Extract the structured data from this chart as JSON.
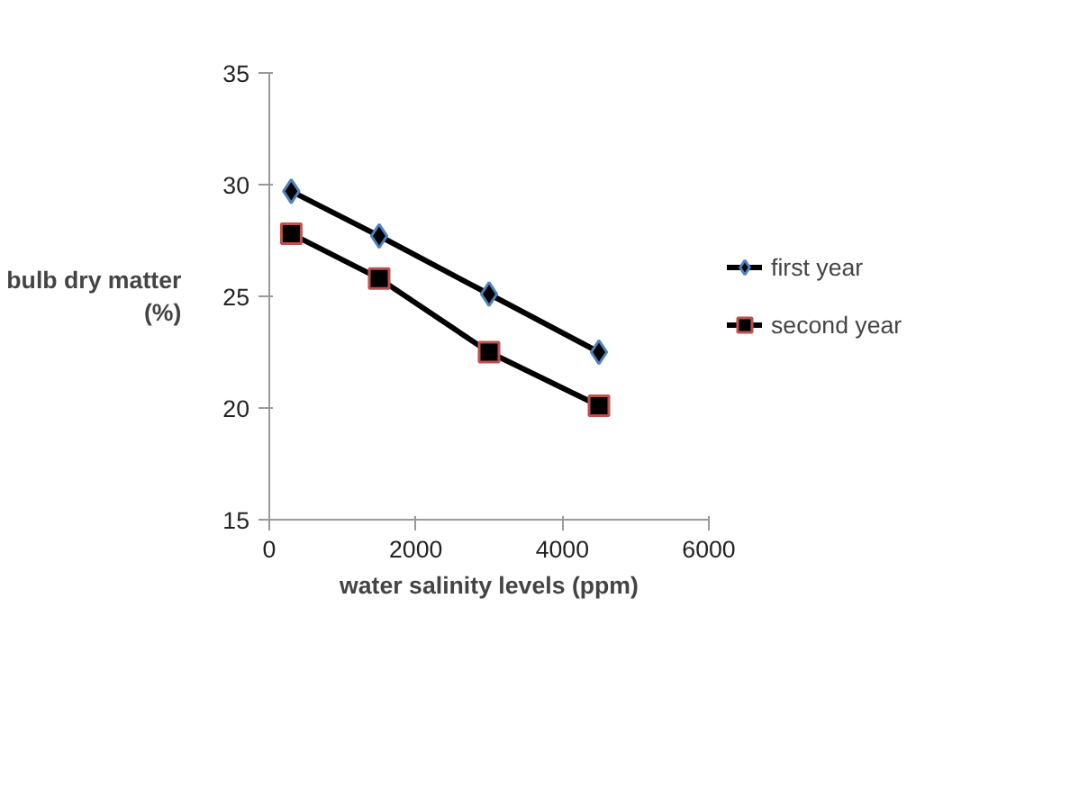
{
  "chart_data": {
    "type": "line",
    "xlabel": "water salinity levels (ppm)",
    "ylabel": "bulb dry matter\n(%)",
    "x": [
      300,
      1500,
      3000,
      4500
    ],
    "series": [
      {
        "name": "first year",
        "color": "#000000",
        "marker": "diamond",
        "values": [
          29.7,
          27.7,
          25.1,
          22.5
        ]
      },
      {
        "name": "second year",
        "color": "#000000",
        "marker": "square",
        "values": [
          27.8,
          25.8,
          22.5,
          20.1
        ]
      }
    ],
    "xlim": [
      0,
      6000
    ],
    "xticks": [
      0,
      2000,
      4000,
      6000
    ],
    "ylim": [
      15,
      35
    ],
    "yticks": [
      15,
      20,
      25,
      30,
      35
    ],
    "grid": false,
    "legend": "right",
    "line_style": "solid"
  }
}
